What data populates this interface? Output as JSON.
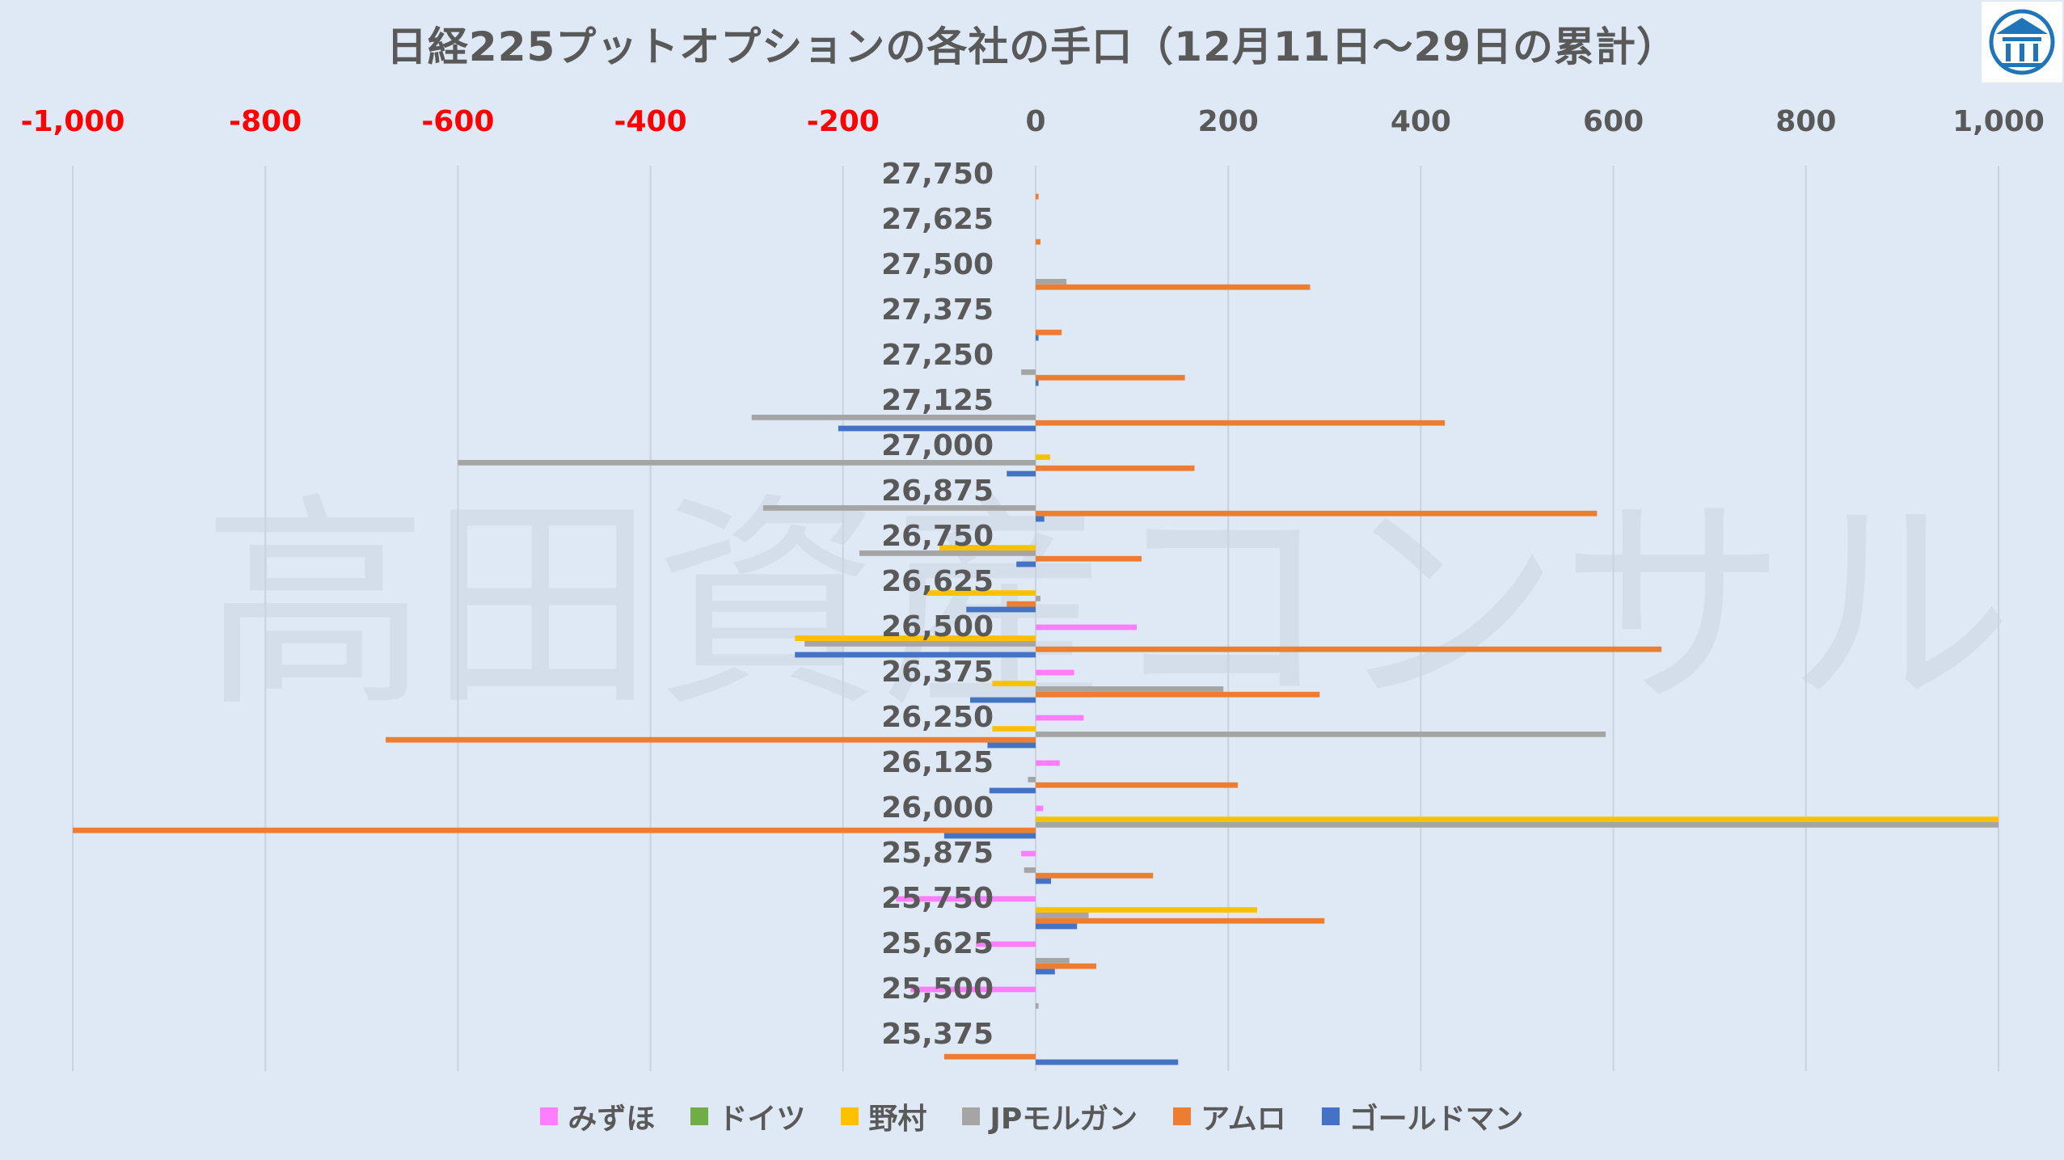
{
  "title": "日経225プットオプションの各社の手口（12月11日～29日の累計）",
  "watermark": "高田資産コンサル",
  "logo": {
    "icon": "bank-building-icon"
  },
  "chart_data": {
    "type": "bar",
    "orientation": "horizontal",
    "title": "日経225プットオプションの各社の手口（12月11日～29日の累計）",
    "xlim": [
      -1000,
      1000
    ],
    "xticks": [
      -1000,
      -800,
      -600,
      -400,
      -200,
      0,
      200,
      400,
      600,
      800,
      1000
    ],
    "xtick_labels": [
      "-1,000",
      "-800",
      "-600",
      "-400",
      "-200",
      "0",
      "200",
      "400",
      "600",
      "800",
      "1,000"
    ],
    "negative_tick_color": "#ff0000",
    "positive_tick_color": "#595959",
    "grid": "vertical",
    "legend_position": "bottom",
    "categories": [
      "27,750",
      "27,625",
      "27,500",
      "27,375",
      "27,250",
      "27,125",
      "27,000",
      "26,875",
      "26,750",
      "26,625",
      "26,500",
      "26,375",
      "26,250",
      "26,125",
      "26,000",
      "25,875",
      "25,750",
      "25,625",
      "25,500",
      "25,375"
    ],
    "series": [
      {
        "name": "みずほ",
        "color": "#ff7eff",
        "values": [
          0,
          0,
          0,
          0,
          0,
          0,
          0,
          0,
          0,
          0,
          105,
          40,
          50,
          25,
          8,
          -15,
          -145,
          -62,
          -130,
          0
        ]
      },
      {
        "name": "ドイツ",
        "color": "#70ad47",
        "values": [
          0,
          0,
          0,
          0,
          0,
          0,
          0,
          0,
          0,
          0,
          0,
          0,
          0,
          0,
          0,
          0,
          0,
          0,
          0,
          0
        ]
      },
      {
        "name": "野村",
        "color": "#ffc000",
        "values": [
          0,
          0,
          0,
          0,
          0,
          0,
          15,
          0,
          -100,
          -115,
          -250,
          -45,
          -45,
          0,
          1000,
          0,
          230,
          0,
          0,
          0
        ]
      },
      {
        "name": "JPモルガン",
        "color": "#a5a5a5",
        "values": [
          0,
          0,
          32,
          0,
          -15,
          -295,
          -600,
          -283,
          -183,
          5,
          -240,
          195,
          592,
          -8,
          1000,
          -12,
          55,
          35,
          3,
          0
        ]
      },
      {
        "name": "アムロ",
        "color": "#ed7d31",
        "values": [
          3,
          5,
          285,
          27,
          155,
          425,
          165,
          583,
          110,
          -30,
          650,
          295,
          -675,
          210,
          -1000,
          122,
          300,
          63,
          0,
          -95
        ]
      },
      {
        "name": "ゴールドマン",
        "color": "#4472c4",
        "values": [
          0,
          0,
          0,
          3,
          3,
          -205,
          -30,
          9,
          -20,
          -72,
          -250,
          -68,
          -50,
          -48,
          -95,
          16,
          43,
          20,
          0,
          148
        ]
      }
    ]
  }
}
